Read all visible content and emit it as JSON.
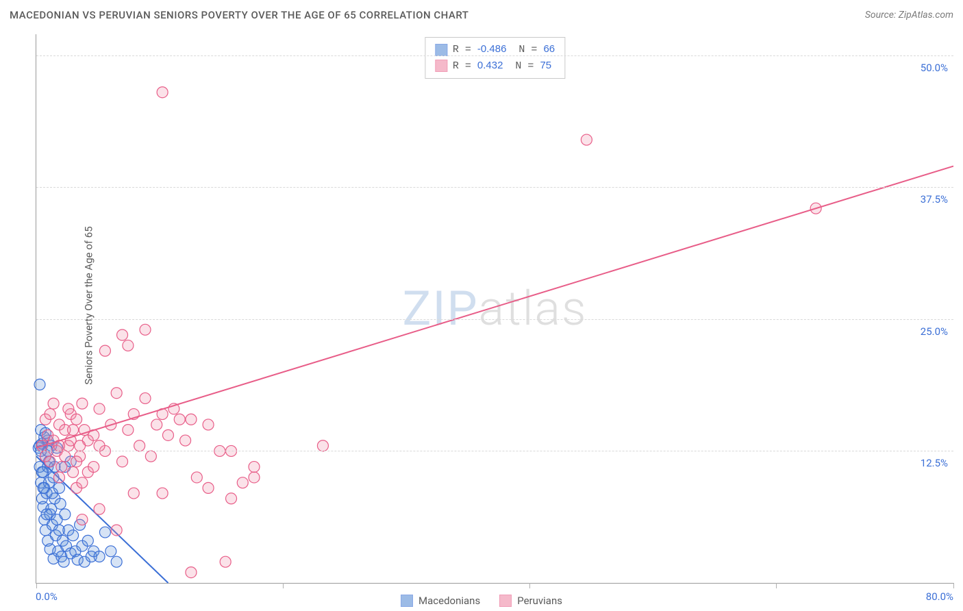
{
  "title": "MACEDONIAN VS PERUVIAN SENIORS POVERTY OVER THE AGE OF 65 CORRELATION CHART",
  "source": "Source: ZipAtlas.com",
  "ylabel": "Seniors Poverty Over the Age of 65",
  "watermark": {
    "left": "ZIP",
    "right": "atlas"
  },
  "chart": {
    "type": "scatter-with-trend",
    "background_color": "#ffffff",
    "grid_color": "#d9d9d9",
    "axis_color": "#9a9a9a",
    "tick_label_color": "#3b6fd6",
    "label_color": "#5a5a5a",
    "label_fontsize": 15,
    "title_fontsize": 15,
    "xlim": [
      0,
      80
    ],
    "ylim": [
      0,
      52
    ],
    "xticks_minor": [
      0,
      21.5,
      43,
      64.5,
      80
    ],
    "yticks": [
      12.5,
      25.0,
      37.5,
      50.0
    ],
    "ytick_labels": [
      "12.5%",
      "25.0%",
      "37.5%",
      "50.0%"
    ],
    "xtick_labels": {
      "left": "0.0%",
      "right": "80.0%"
    },
    "marker_radius": 8,
    "marker_fill_opacity": 0.25,
    "marker_stroke_width": 1.2,
    "trend_line_width": 2,
    "series": [
      {
        "name": "Macedonians",
        "color": "#5b8fd6",
        "stroke": "#3b6fd6",
        "r": "-0.486",
        "n": "66",
        "trend": {
          "x1": 0,
          "y1": 12.0,
          "x2": 11.5,
          "y2": 0
        },
        "points": [
          [
            0.2,
            12.8
          ],
          [
            0.3,
            13.0
          ],
          [
            0.3,
            11.0
          ],
          [
            0.4,
            9.5
          ],
          [
            0.4,
            14.5
          ],
          [
            0.5,
            13.2
          ],
          [
            0.5,
            8.0
          ],
          [
            0.6,
            10.5
          ],
          [
            0.6,
            7.2
          ],
          [
            0.7,
            9.0
          ],
          [
            0.7,
            6.0
          ],
          [
            0.8,
            12.0
          ],
          [
            0.8,
            5.0
          ],
          [
            0.9,
            8.5
          ],
          [
            1.0,
            11.0
          ],
          [
            1.0,
            4.0
          ],
          [
            1.1,
            9.5
          ],
          [
            1.2,
            6.5
          ],
          [
            1.2,
            3.2
          ],
          [
            1.3,
            7.0
          ],
          [
            1.4,
            5.5
          ],
          [
            1.5,
            10.0
          ],
          [
            1.5,
            2.3
          ],
          [
            1.6,
            8.0
          ],
          [
            1.7,
            4.5
          ],
          [
            1.8,
            6.0
          ],
          [
            1.9,
            3.0
          ],
          [
            2.0,
            5.0
          ],
          [
            2.1,
            7.5
          ],
          [
            2.2,
            2.5
          ],
          [
            2.3,
            4.0
          ],
          [
            2.4,
            2.0
          ],
          [
            2.5,
            6.5
          ],
          [
            2.6,
            3.5
          ],
          [
            2.8,
            5.0
          ],
          [
            3.0,
            2.8
          ],
          [
            3.2,
            4.5
          ],
          [
            3.4,
            3.0
          ],
          [
            3.6,
            2.2
          ],
          [
            3.8,
            5.5
          ],
          [
            4.0,
            3.5
          ],
          [
            4.2,
            2.0
          ],
          [
            4.5,
            4.0
          ],
          [
            4.8,
            2.5
          ],
          [
            5.0,
            3.0
          ],
          [
            5.5,
            2.5
          ],
          [
            6.0,
            4.8
          ],
          [
            6.5,
            3.0
          ],
          [
            7.0,
            2.0
          ],
          [
            0.3,
            18.8
          ],
          [
            1.0,
            13.5
          ],
          [
            1.3,
            13.0
          ],
          [
            1.8,
            12.8
          ],
          [
            2.5,
            11.0
          ],
          [
            3.0,
            11.5
          ],
          [
            0.5,
            10.5
          ],
          [
            0.6,
            9.0
          ],
          [
            0.9,
            6.5
          ],
          [
            1.1,
            11.5
          ],
          [
            1.4,
            8.5
          ],
          [
            0.4,
            12.5
          ],
          [
            0.7,
            13.8
          ],
          [
            0.8,
            14.2
          ],
          [
            1.0,
            12.5
          ],
          [
            1.6,
            11.0
          ],
          [
            2.0,
            9.0
          ]
        ]
      },
      {
        "name": "Peruvians",
        "color": "#f08ca8",
        "stroke": "#e85d88",
        "r": "0.432",
        "n": "75",
        "trend": {
          "x1": 0,
          "y1": 12.8,
          "x2": 80,
          "y2": 39.5
        },
        "points": [
          [
            0.5,
            13.0
          ],
          [
            0.8,
            12.0
          ],
          [
            1.0,
            14.0
          ],
          [
            1.2,
            11.5
          ],
          [
            1.5,
            13.5
          ],
          [
            1.8,
            12.5
          ],
          [
            2.0,
            15.0
          ],
          [
            2.2,
            11.0
          ],
          [
            2.5,
            14.5
          ],
          [
            2.8,
            13.0
          ],
          [
            3.0,
            16.0
          ],
          [
            3.2,
            10.5
          ],
          [
            3.5,
            15.5
          ],
          [
            3.8,
            12.0
          ],
          [
            4.0,
            17.0
          ],
          [
            4.5,
            13.5
          ],
          [
            5.0,
            14.0
          ],
          [
            5.5,
            16.5
          ],
          [
            6.0,
            12.5
          ],
          [
            6.5,
            15.0
          ],
          [
            7.0,
            18.0
          ],
          [
            7.5,
            11.5
          ],
          [
            8.0,
            14.5
          ],
          [
            8.5,
            16.0
          ],
          [
            9.0,
            13.0
          ],
          [
            9.5,
            17.5
          ],
          [
            10.0,
            12.0
          ],
          [
            10.5,
            15.0
          ],
          [
            11.0,
            8.5
          ],
          [
            11.5,
            14.0
          ],
          [
            12.0,
            16.5
          ],
          [
            13.0,
            13.5
          ],
          [
            14.0,
            10.0
          ],
          [
            15.0,
            9.0
          ],
          [
            16.0,
            12.5
          ],
          [
            17.0,
            8.0
          ],
          [
            18.0,
            9.5
          ],
          [
            13.5,
            1.0
          ],
          [
            16.5,
            2.0
          ],
          [
            19.0,
            10.0
          ],
          [
            4.0,
            6.0
          ],
          [
            5.5,
            7.0
          ],
          [
            7.0,
            5.0
          ],
          [
            8.5,
            8.5
          ],
          [
            2.0,
            10.0
          ],
          [
            3.5,
            9.0
          ],
          [
            6.0,
            22.0
          ],
          [
            7.5,
            23.5
          ],
          [
            8.0,
            22.5
          ],
          [
            9.5,
            24.0
          ],
          [
            11.0,
            16.0
          ],
          [
            12.5,
            15.5
          ],
          [
            13.5,
            15.5
          ],
          [
            15.0,
            15.0
          ],
          [
            17.0,
            12.5
          ],
          [
            19.0,
            11.0
          ],
          [
            25.0,
            13.0
          ],
          [
            11.0,
            46.5
          ],
          [
            48.0,
            42.0
          ],
          [
            68.0,
            35.5
          ],
          [
            0.8,
            15.5
          ],
          [
            1.2,
            16.0
          ],
          [
            1.5,
            17.0
          ],
          [
            2.0,
            13.0
          ],
          [
            2.5,
            12.0
          ],
          [
            3.0,
            13.5
          ],
          [
            3.5,
            11.5
          ],
          [
            4.0,
            9.5
          ],
          [
            4.5,
            10.5
          ],
          [
            5.0,
            11.0
          ],
          [
            2.8,
            16.5
          ],
          [
            3.2,
            14.5
          ],
          [
            3.8,
            13.0
          ],
          [
            4.2,
            14.5
          ],
          [
            5.5,
            13.0
          ]
        ]
      }
    ],
    "stat_box": {
      "border_color": "#c9c9c9",
      "font_family": "monospace"
    },
    "bottom_legend": [
      {
        "label": "Macedonians",
        "color": "#5b8fd6",
        "stroke": "#3b6fd6"
      },
      {
        "label": "Peruvians",
        "color": "#f08ca8",
        "stroke": "#e85d88"
      }
    ]
  }
}
